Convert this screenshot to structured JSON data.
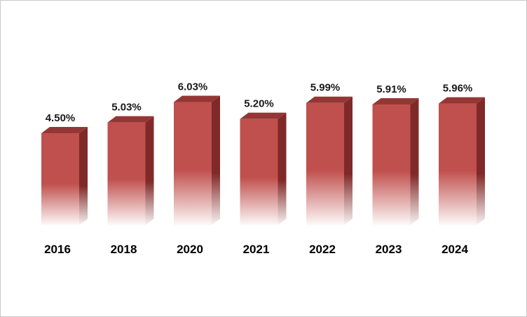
{
  "chart_data": {
    "type": "bar",
    "categories": [
      "2016",
      "2018",
      "2020",
      "2021",
      "2022",
      "2023",
      "2024"
    ],
    "values": [
      4.5,
      5.03,
      6.03,
      5.2,
      5.99,
      5.91,
      5.96
    ],
    "value_labels": [
      "4.50%",
      "5.03%",
      "6.03%",
      "5.20%",
      "5.99%",
      "5.91%",
      "5.96%"
    ],
    "unit": "%",
    "title": "",
    "xlabel": "",
    "ylabel": "",
    "ylim": [
      0,
      6.5
    ],
    "grid": false,
    "legend": "none",
    "style": "3d-bar",
    "colors": {
      "bar_front": "#c0504d",
      "bar_side": "#7f2a28",
      "bar_top": "#943634"
    }
  }
}
